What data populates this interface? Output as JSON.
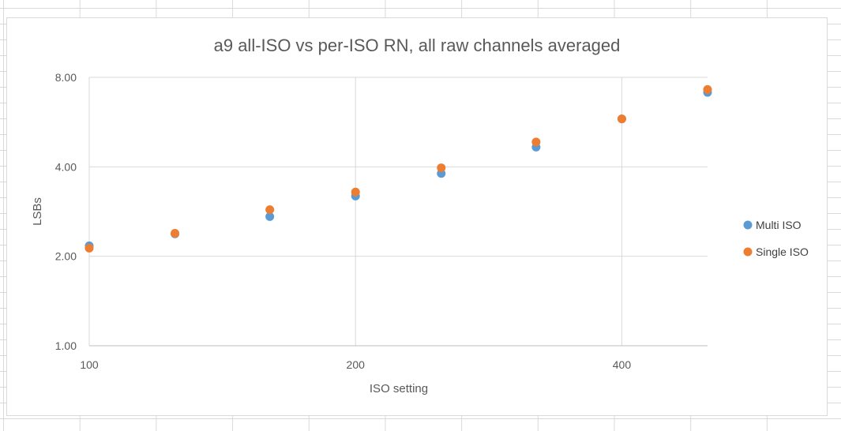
{
  "chart_data": {
    "type": "scatter",
    "title": "a9 all-ISO vs per-ISO RN, all raw channels averaged",
    "xlabel": "ISO setting",
    "ylabel": "LSBs",
    "x_scale": "log2",
    "y_scale": "log2",
    "xlim": [
      100,
      500
    ],
    "ylim": [
      1,
      8
    ],
    "x_ticks": [
      100,
      200,
      400
    ],
    "x_tick_labels": [
      "100",
      "200",
      "400"
    ],
    "y_ticks": [
      1,
      2,
      4,
      8
    ],
    "y_tick_labels": [
      "1.00",
      "2.00",
      "4.00",
      "8.00"
    ],
    "grid": true,
    "legend_position": "right",
    "series": [
      {
        "name": "Multi ISO",
        "color": "#5b9bd5",
        "x": [
          100,
          125,
          160,
          200,
          250,
          320,
          400,
          500
        ],
        "y": [
          2.17,
          2.38,
          2.72,
          3.19,
          3.8,
          4.66,
          5.8,
          7.12
        ]
      },
      {
        "name": "Single ISO",
        "color": "#ed7d31",
        "x": [
          100,
          125,
          160,
          200,
          250,
          320,
          400,
          500
        ],
        "y": [
          2.13,
          2.39,
          2.87,
          3.29,
          3.97,
          4.85,
          5.8,
          7.28
        ]
      }
    ]
  }
}
